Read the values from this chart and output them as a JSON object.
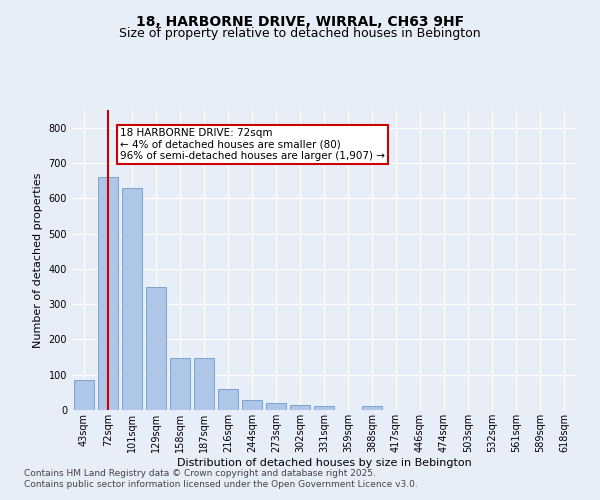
{
  "title_line1": "18, HARBORNE DRIVE, WIRRAL, CH63 9HF",
  "title_line2": "Size of property relative to detached houses in Bebington",
  "xlabel": "Distribution of detached houses by size in Bebington",
  "ylabel": "Number of detached properties",
  "categories": [
    "43sqm",
    "72sqm",
    "101sqm",
    "129sqm",
    "158sqm",
    "187sqm",
    "216sqm",
    "244sqm",
    "273sqm",
    "302sqm",
    "331sqm",
    "359sqm",
    "388sqm",
    "417sqm",
    "446sqm",
    "474sqm",
    "503sqm",
    "532sqm",
    "561sqm",
    "589sqm",
    "618sqm"
  ],
  "values": [
    85,
    660,
    630,
    348,
    148,
    148,
    60,
    28,
    20,
    15,
    10,
    0,
    10,
    0,
    0,
    0,
    0,
    0,
    0,
    0,
    0
  ],
  "bar_color": "#aec6e8",
  "bar_edge_color": "#5b8ec4",
  "highlight_index": 1,
  "highlight_color": "#cc0000",
  "annotation_text": "18 HARBORNE DRIVE: 72sqm\n← 4% of detached houses are smaller (80)\n96% of semi-detached houses are larger (1,907) →",
  "annotation_box_color": "#ffffff",
  "annotation_box_edge": "#cc0000",
  "ylim": [
    0,
    850
  ],
  "yticks": [
    0,
    100,
    200,
    300,
    400,
    500,
    600,
    700,
    800
  ],
  "background_color": "#e8eef7",
  "plot_bg_color": "#e8eef7",
  "footer_line1": "Contains HM Land Registry data © Crown copyright and database right 2025.",
  "footer_line2": "Contains public sector information licensed under the Open Government Licence v3.0.",
  "title_fontsize": 10,
  "subtitle_fontsize": 9,
  "axis_label_fontsize": 8,
  "tick_fontsize": 7,
  "annotation_fontsize": 7.5,
  "footer_fontsize": 6.5
}
